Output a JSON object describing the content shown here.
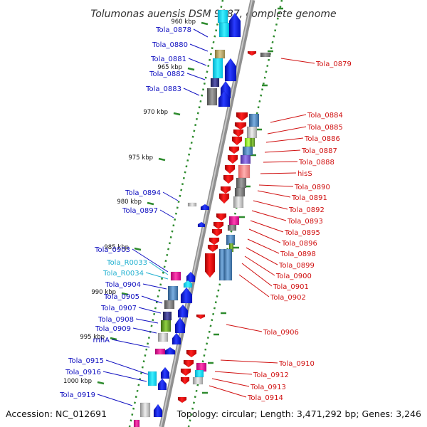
{
  "title": "Tolumonas auensis DSM 9187, complete genome",
  "accession": "Accession: NC_012691",
  "topology": "Topology: circular; Length: 3,471,292 bp; Genes: 3,246",
  "colors": {
    "background": "#ffffff",
    "backbone": "#8c8c8c",
    "tick": "#2e8b2e",
    "forward_label": "#1010c0",
    "reverse_label": "#d01010",
    "rna_label": "#20b0d0",
    "forward_gene": "#1020e0",
    "reverse_gene": "#e01010"
  },
  "scale": {
    "unit": "kbp",
    "labels": [
      "960 kbp",
      "965 kbp",
      "970 kbp",
      "975 kbp",
      "980 kbp",
      "985 kbp",
      "990 kbp",
      "995 kbp",
      "1000 kbp"
    ]
  },
  "forward_labels": [
    {
      "text": "Tola_0878",
      "type": "gene"
    },
    {
      "text": "Tola_0880",
      "type": "gene"
    },
    {
      "text": "Tola_0881",
      "type": "gene"
    },
    {
      "text": "Tola_0882",
      "type": "gene"
    },
    {
      "text": "Tola_0883",
      "type": "gene"
    },
    {
      "text": "Tola_0894",
      "type": "gene"
    },
    {
      "text": "Tola_0897",
      "type": "gene"
    },
    {
      "text": "Tola_0903",
      "type": "gene"
    },
    {
      "text": "Tola_R0033",
      "type": "rna"
    },
    {
      "text": "Tola_R0034",
      "type": "rna"
    },
    {
      "text": "Tola_0904",
      "type": "gene"
    },
    {
      "text": "Tola_0905",
      "type": "gene"
    },
    {
      "text": "Tola_0907",
      "type": "gene"
    },
    {
      "text": "Tola_0908",
      "type": "gene"
    },
    {
      "text": "Tola_0909",
      "type": "gene"
    },
    {
      "text": "rnhA",
      "type": "gene"
    },
    {
      "text": "Tola_0915",
      "type": "gene"
    },
    {
      "text": "Tola_0916",
      "type": "gene"
    },
    {
      "text": "Tola_0919",
      "type": "gene"
    }
  ],
  "reverse_labels": [
    {
      "text": "Tola_0879"
    },
    {
      "text": "Tola_0884"
    },
    {
      "text": "Tola_0885"
    },
    {
      "text": "Tola_0886"
    },
    {
      "text": "Tola_0887"
    },
    {
      "text": "Tola_0888"
    },
    {
      "text": "hisS"
    },
    {
      "text": "Tola_0890"
    },
    {
      "text": "Tola_0891"
    },
    {
      "text": "Tola_0892"
    },
    {
      "text": "Tola_0893"
    },
    {
      "text": "Tola_0895"
    },
    {
      "text": "Tola_0896"
    },
    {
      "text": "Tola_0898"
    },
    {
      "text": "Tola_0899"
    },
    {
      "text": "Tola_0900"
    },
    {
      "text": "Tola_0901"
    },
    {
      "text": "Tola_0902"
    },
    {
      "text": "Tola_0906"
    },
    {
      "text": "Tola_0910"
    },
    {
      "text": "Tola_0912"
    },
    {
      "text": "Tola_0913"
    },
    {
      "text": "Tola_0914"
    }
  ]
}
